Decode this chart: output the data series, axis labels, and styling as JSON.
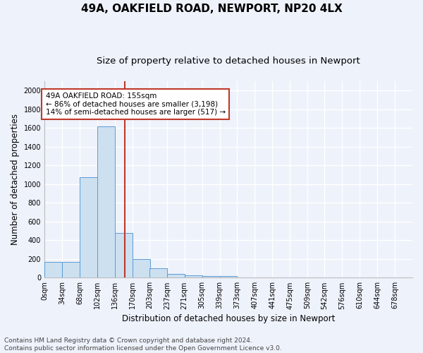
{
  "title1": "49A, OAKFIELD ROAD, NEWPORT, NP20 4LX",
  "title2": "Size of property relative to detached houses in Newport",
  "xlabel": "Distribution of detached houses by size in Newport",
  "ylabel": "Number of detached properties",
  "bar_left_edges": [
    0,
    34,
    68,
    102,
    136,
    170,
    203,
    237,
    271,
    305,
    339,
    373,
    407,
    441,
    475,
    509,
    542,
    576,
    610,
    644
  ],
  "bar_heights": [
    165,
    165,
    1075,
    1620,
    480,
    200,
    100,
    40,
    25,
    15,
    15,
    0,
    0,
    0,
    0,
    0,
    0,
    0,
    0,
    0
  ],
  "bin_width": 34,
  "bar_color": "#cce0f0",
  "bar_edgecolor": "#5b9bd5",
  "vline_x": 155,
  "vline_color": "#c0392b",
  "annotation_line1": "49A OAKFIELD ROAD: 155sqm",
  "annotation_line2": "← 86% of detached houses are smaller (3,198)",
  "annotation_line3": "14% of semi-detached houses are larger (517) →",
  "annotation_box_edgecolor": "#c0392b",
  "annotation_box_facecolor": "white",
  "xlim": [
    0,
    712
  ],
  "ylim": [
    0,
    2100
  ],
  "yticks": [
    0,
    200,
    400,
    600,
    800,
    1000,
    1200,
    1400,
    1600,
    1800,
    2000
  ],
  "xtick_labels": [
    "0sqm",
    "34sqm",
    "68sqm",
    "102sqm",
    "136sqm",
    "170sqm",
    "203sqm",
    "237sqm",
    "271sqm",
    "305sqm",
    "339sqm",
    "373sqm",
    "407sqm",
    "441sqm",
    "475sqm",
    "509sqm",
    "542sqm",
    "576sqm",
    "610sqm",
    "644sqm",
    "678sqm"
  ],
  "xtick_positions": [
    0,
    34,
    68,
    102,
    136,
    170,
    203,
    237,
    271,
    305,
    339,
    373,
    407,
    441,
    475,
    509,
    542,
    576,
    610,
    644,
    678
  ],
  "footnote": "Contains HM Land Registry data © Crown copyright and database right 2024.\nContains public sector information licensed under the Open Government Licence v3.0.",
  "bg_color": "#eef2fb",
  "grid_color": "#ffffff",
  "title1_fontsize": 11,
  "title2_fontsize": 9.5,
  "xlabel_fontsize": 8.5,
  "ylabel_fontsize": 8.5,
  "annotation_fontsize": 7.5,
  "footnote_fontsize": 6.5,
  "tick_fontsize": 7
}
